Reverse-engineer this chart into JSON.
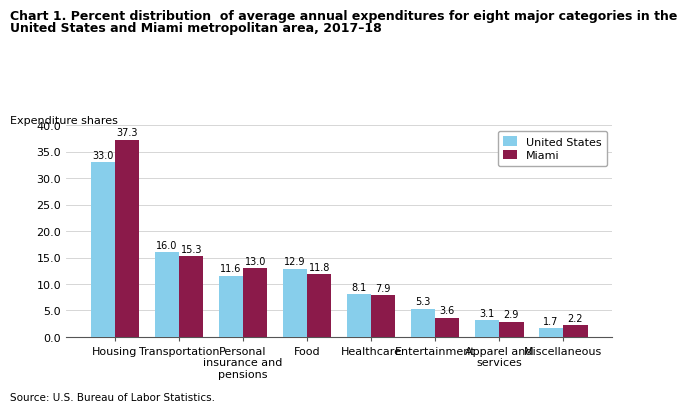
{
  "title_line1": "Chart 1. Percent distribution  of average annual expenditures for eight major categories in the",
  "title_line2": "United States and Miami metropolitan area, 2017–18",
  "ylabel": "Expenditure shares",
  "source": "Source: U.S. Bureau of Labor Statistics.",
  "categories": [
    "Housing",
    "Transportation",
    "Personal\ninsurance and\npensions",
    "Food",
    "Healthcare",
    "Entertainment",
    "Apparel and\nservices",
    "Miscellaneous"
  ],
  "us_values": [
    33.0,
    16.0,
    11.6,
    12.9,
    8.1,
    5.3,
    3.1,
    1.7
  ],
  "miami_values": [
    37.3,
    15.3,
    13.0,
    11.8,
    7.9,
    3.6,
    2.9,
    2.2
  ],
  "us_color": "#87CEEB",
  "miami_color": "#8B1A4A",
  "ylim": [
    0,
    40
  ],
  "yticks": [
    0.0,
    5.0,
    10.0,
    15.0,
    20.0,
    25.0,
    30.0,
    35.0,
    40.0
  ],
  "legend_labels": [
    "United States",
    "Miami"
  ],
  "bar_width": 0.38,
  "title_fontsize": 9.0,
  "axis_label_fontsize": 8.0,
  "tick_fontsize": 8.0,
  "value_fontsize": 7.0,
  "source_fontsize": 7.5,
  "legend_fontsize": 8.0
}
